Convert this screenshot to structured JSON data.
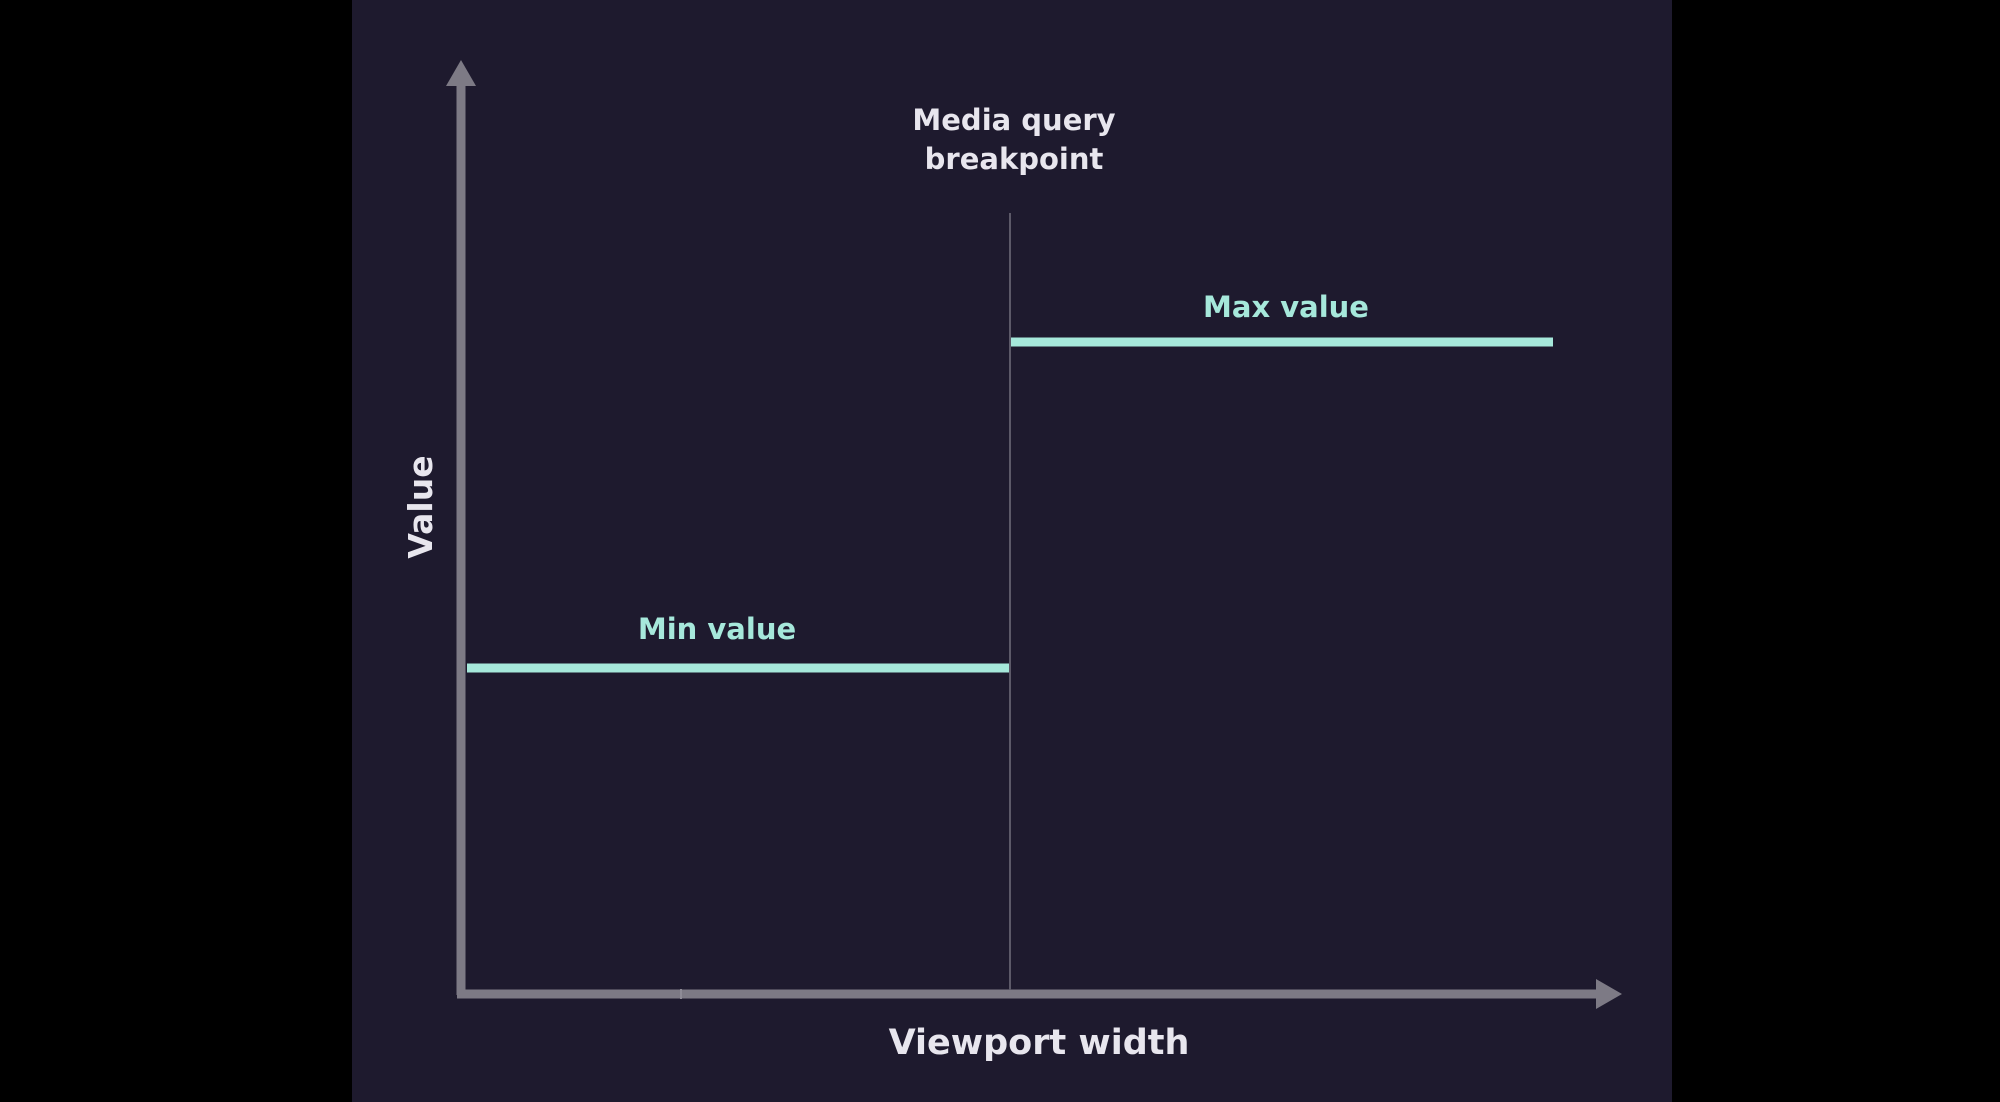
{
  "diagram": {
    "title_lines": [
      "Media query",
      "breakpoint"
    ],
    "x_axis_label": "Viewport width",
    "y_axis_label": "Value",
    "min_label": "Min value",
    "max_label": "Max value",
    "colors": {
      "outer_background": "#000000",
      "panel_background": "#1e1a2e",
      "axis": "#7d7a85",
      "value_line": "#a6e8db",
      "label_text": "#e8e6ee",
      "breakpoint_line": "#5c5968"
    }
  }
}
